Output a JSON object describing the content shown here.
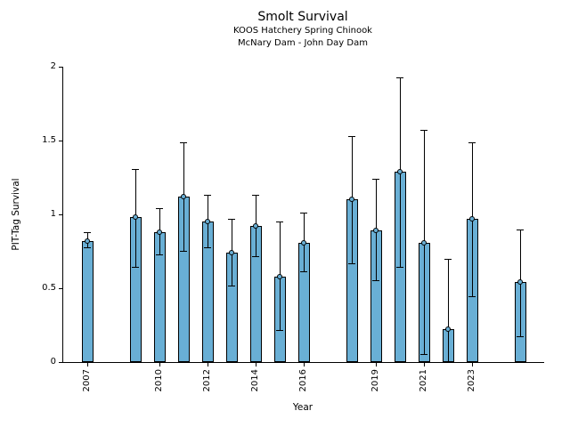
{
  "chart_data": {
    "type": "bar",
    "title": "Smolt Survival",
    "subtitle1": "KOOS Hatchery Spring Chinook",
    "subtitle2": "McNary Dam - John Day Dam",
    "xlabel": "Year",
    "ylabel": "PIT-Tag Survival",
    "ylim": [
      0,
      2
    ],
    "x_range": [
      2006,
      2026
    ],
    "yticks": [
      0,
      0.5,
      1,
      1.5,
      2
    ],
    "ytick_labels": [
      "0",
      "0.5",
      "1",
      "1.5",
      "2"
    ],
    "xticks": [
      2007,
      2010,
      2012,
      2014,
      2016,
      2019,
      2021,
      2023
    ],
    "legend": "none",
    "grid": false,
    "series": [
      {
        "name": "PIT-Tag Survival",
        "years": [
          2007,
          2009,
          2010,
          2011,
          2012,
          2013,
          2014,
          2015,
          2016,
          2018,
          2019,
          2020,
          2021,
          2022,
          2023,
          2025
        ],
        "values": [
          0.82,
          0.98,
          0.88,
          1.12,
          0.95,
          0.74,
          0.92,
          0.58,
          0.81,
          1.1,
          0.89,
          1.29,
          0.81,
          0.22,
          0.97,
          0.54
        ],
        "err_low": [
          0.77,
          0.64,
          0.72,
          0.75,
          0.77,
          0.51,
          0.71,
          0.21,
          0.61,
          0.66,
          0.55,
          0.64,
          0.05,
          0.0,
          0.44,
          0.17
        ],
        "err_high": [
          0.88,
          1.31,
          1.04,
          1.49,
          1.13,
          0.97,
          1.13,
          0.95,
          1.01,
          1.53,
          1.24,
          1.93,
          1.57,
          0.7,
          1.49,
          0.9
        ]
      }
    ],
    "bar_color": "#69afd5",
    "bar_edge_color": "#000000",
    "error_color": "#000000"
  }
}
